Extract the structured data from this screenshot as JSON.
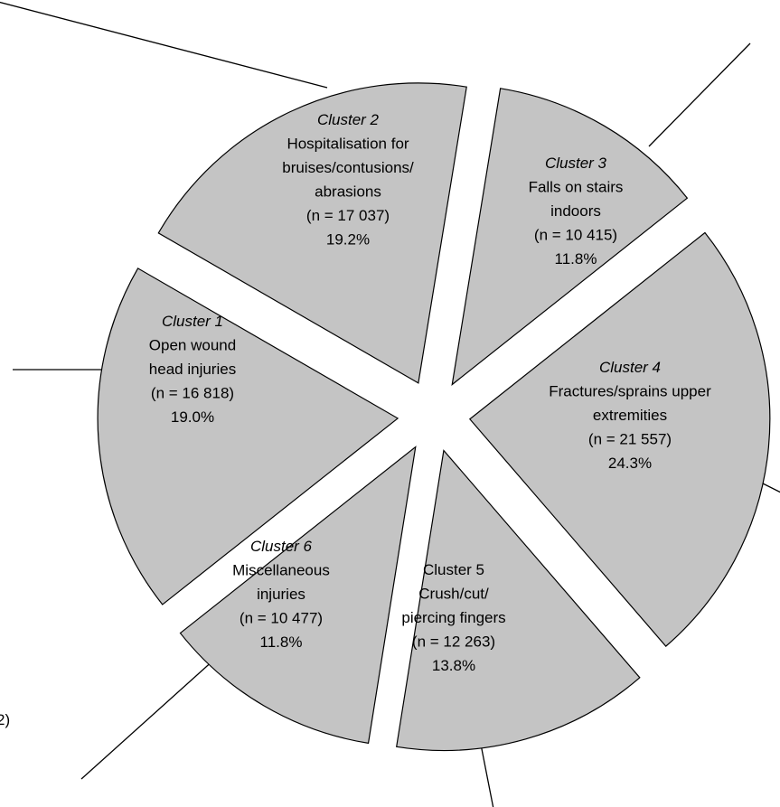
{
  "chart_data": {
    "type": "pie",
    "exploded": true,
    "colors": {
      "slice_fill": "#c4c4c4",
      "outline": "#000000"
    },
    "slices": [
      {
        "cluster": "Cluster 2",
        "lines": [
          "Hospitalisation for",
          "bruises/contusions/",
          "abrasions"
        ],
        "n": "(n = 17 037)",
        "pct_label": "19.2%",
        "value": 17037,
        "percent": 19.2
      },
      {
        "cluster": "Cluster 3",
        "lines": [
          "Falls on stairs",
          "indoors"
        ],
        "n": "(n = 10 415)",
        "pct_label": "11.8%",
        "value": 10415,
        "percent": 11.8
      },
      {
        "cluster": "Cluster 4",
        "lines": [
          "Fractures/sprains upper",
          "extremities"
        ],
        "n": "(n = 21 557)",
        "pct_label": "24.3%",
        "value": 21557,
        "percent": 24.3
      },
      {
        "cluster": "Cluster 5",
        "lines": [
          "Crush/cut/",
          "piercing fingers"
        ],
        "n": "(n = 12 263)",
        "pct_label": "13.8%",
        "value": 12263,
        "percent": 13.8
      },
      {
        "cluster": "Cluster 6",
        "lines": [
          "Miscellaneous",
          "injuries"
        ],
        "n": "(n = 10 477)",
        "pct_label": "11.8%",
        "value": 10477,
        "percent": 11.8
      },
      {
        "cluster": "Cluster 1",
        "lines": [
          "Open wound",
          "head injuries"
        ],
        "n": "(n = 16 818)",
        "pct_label": "19.0%",
        "value": 16818,
        "percent": 19.0
      }
    ]
  },
  "edge_fragment": "2)"
}
